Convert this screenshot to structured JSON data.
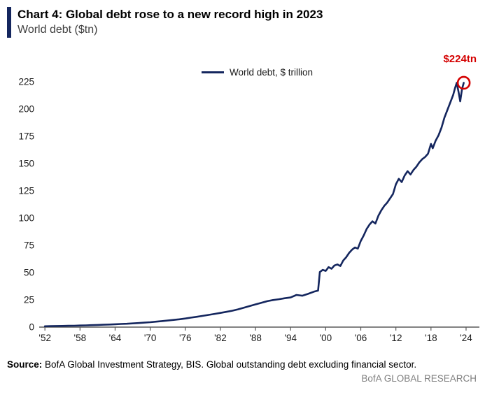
{
  "header": {
    "title": "Chart 4: Global debt rose to a new record high in 2023",
    "subtitle": "World debt ($tn)"
  },
  "chart_data": {
    "type": "line",
    "title": "Chart 4: Global debt rose to a new record high in 2023",
    "subtitle": "World debt ($tn)",
    "legend": "World debt, $ trillion",
    "annotation": {
      "label": "$224tn",
      "x": 2023.6,
      "y": 224
    },
    "xlabel": "",
    "ylabel": "World debt ($tn)",
    "grid": false,
    "legend_position": "top-center",
    "xlim": [
      1951.5,
      2025.8
    ],
    "ylim": [
      0,
      232
    ],
    "yticks": [
      0,
      25,
      50,
      75,
      100,
      125,
      150,
      175,
      200,
      225
    ],
    "xticks": {
      "values": [
        1952,
        1958,
        1964,
        1970,
        1976,
        1982,
        1988,
        1994,
        2000,
        2006,
        2012,
        2018,
        2024
      ],
      "labels": [
        "'52",
        "'58",
        "'64",
        "'70",
        "'76",
        "'82",
        "'88",
        "'94",
        "'00",
        "'06",
        "'12",
        "'18",
        "'24"
      ]
    },
    "line_color": "#14265E",
    "annotation_color": "#D40000",
    "axis_color": "#595959",
    "points": [
      [
        1952,
        0.8
      ],
      [
        1953,
        0.9
      ],
      [
        1954,
        1.0
      ],
      [
        1955,
        1.1
      ],
      [
        1956,
        1.2
      ],
      [
        1957,
        1.3
      ],
      [
        1958,
        1.5
      ],
      [
        1959,
        1.6
      ],
      [
        1960,
        1.8
      ],
      [
        1961,
        2.0
      ],
      [
        1962,
        2.2
      ],
      [
        1963,
        2.4
      ],
      [
        1964,
        2.6
      ],
      [
        1965,
        2.9
      ],
      [
        1966,
        3.1
      ],
      [
        1967,
        3.4
      ],
      [
        1968,
        3.7
      ],
      [
        1969,
        4.1
      ],
      [
        1970,
        4.5
      ],
      [
        1971,
        5.0
      ],
      [
        1972,
        5.5
      ],
      [
        1973,
        6.0
      ],
      [
        1974,
        6.6
      ],
      [
        1975,
        7.2
      ],
      [
        1976,
        7.9
      ],
      [
        1977,
        8.7
      ],
      [
        1978,
        9.5
      ],
      [
        1979,
        10.3
      ],
      [
        1980,
        11.2
      ],
      [
        1981,
        12.1
      ],
      [
        1982,
        13.0
      ],
      [
        1983,
        14.0
      ],
      [
        1984,
        15.0
      ],
      [
        1985,
        16.3
      ],
      [
        1986,
        17.8
      ],
      [
        1987,
        19.3
      ],
      [
        1988,
        20.8
      ],
      [
        1989,
        22.3
      ],
      [
        1990,
        23.8
      ],
      [
        1991,
        24.8
      ],
      [
        1992,
        25.6
      ],
      [
        1993,
        26.5
      ],
      [
        1994,
        27.2
      ],
      [
        1995,
        29.5
      ],
      [
        1996,
        28.8
      ],
      [
        1997,
        30.5
      ],
      [
        1998,
        32.5
      ],
      [
        1998.7,
        33.5
      ],
      [
        1999,
        50.5
      ],
      [
        1999.5,
        52.5
      ],
      [
        2000,
        51.5
      ],
      [
        2000.5,
        55
      ],
      [
        2001,
        53.5
      ],
      [
        2001.5,
        56.5
      ],
      [
        2002,
        57.5
      ],
      [
        2002.5,
        56
      ],
      [
        2003,
        61
      ],
      [
        2003.5,
        64
      ],
      [
        2004,
        68
      ],
      [
        2004.5,
        71
      ],
      [
        2005,
        73
      ],
      [
        2005.5,
        72
      ],
      [
        2006,
        79
      ],
      [
        2006.5,
        84
      ],
      [
        2007,
        90
      ],
      [
        2007.5,
        94
      ],
      [
        2008,
        97
      ],
      [
        2008.5,
        95
      ],
      [
        2009,
        102
      ],
      [
        2009.5,
        107
      ],
      [
        2010,
        111
      ],
      [
        2010.5,
        114
      ],
      [
        2011,
        118
      ],
      [
        2011.5,
        122
      ],
      [
        2012,
        131
      ],
      [
        2012.5,
        136
      ],
      [
        2013,
        133
      ],
      [
        2013.5,
        139
      ],
      [
        2014,
        143
      ],
      [
        2014.5,
        140
      ],
      [
        2015,
        144
      ],
      [
        2015.5,
        147
      ],
      [
        2016,
        151
      ],
      [
        2016.5,
        154
      ],
      [
        2017,
        156
      ],
      [
        2017.5,
        159
      ],
      [
        2018,
        168
      ],
      [
        2018.3,
        164
      ],
      [
        2018.8,
        171
      ],
      [
        2019.3,
        176
      ],
      [
        2019.8,
        183
      ],
      [
        2020.3,
        192
      ],
      [
        2020.8,
        199
      ],
      [
        2021.3,
        206
      ],
      [
        2021.8,
        213
      ],
      [
        2022.1,
        219
      ],
      [
        2022.4,
        224
      ],
      [
        2022.7,
        216
      ],
      [
        2023,
        207
      ],
      [
        2023.3,
        218
      ],
      [
        2023.6,
        224
      ]
    ]
  },
  "footer": {
    "source_label": "Source:",
    "source_text": " BofA Global Investment Strategy, BIS. Global outstanding debt excluding financial sector.",
    "brand": "BofA GLOBAL RESEARCH"
  }
}
